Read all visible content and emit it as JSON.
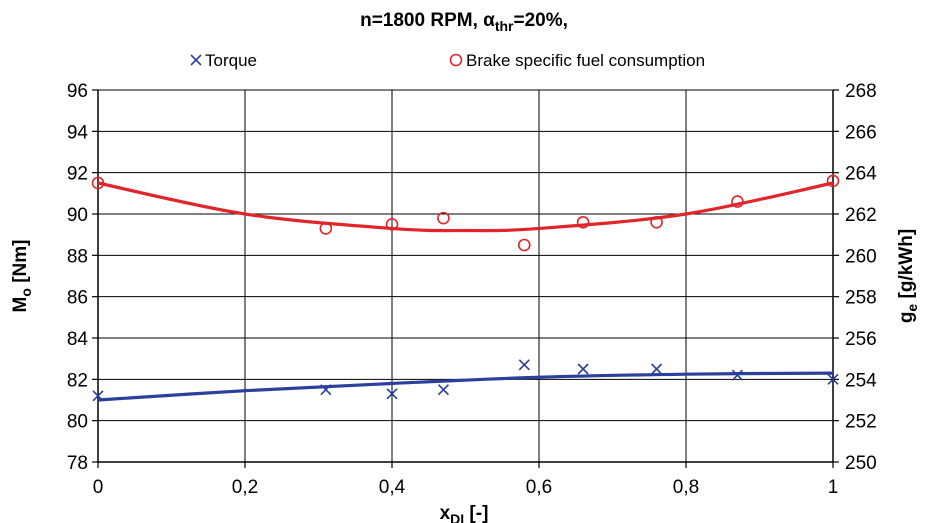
{
  "chart_data": {
    "type": "scatter",
    "title": {
      "main": "n=1800 RPM, ",
      "alpha": "α",
      "alpha_sub": "thr",
      "rest": "=20%,"
    },
    "xlabel": {
      "main": "x",
      "sub": "DI",
      "rest": " [-]"
    },
    "ylabel_left": {
      "main": "M",
      "sub": "o",
      "rest": " [Nm]"
    },
    "ylabel_right": {
      "main": "g",
      "sub": "e",
      "rest": " [g/kWh]"
    },
    "xlim": [
      0,
      1
    ],
    "ylim_left": [
      78,
      96
    ],
    "ylim_right": [
      250,
      268
    ],
    "x_ticks": [
      "0",
      "0,2",
      "0,4",
      "0,6",
      "0,8",
      "1"
    ],
    "y_left_ticks": [
      "78",
      "80",
      "82",
      "84",
      "86",
      "88",
      "90",
      "92",
      "94",
      "96"
    ],
    "y_right_ticks": [
      "250",
      "252",
      "254",
      "256",
      "258",
      "260",
      "262",
      "264",
      "266",
      "268"
    ],
    "grid": true,
    "legend_position": "top",
    "series": [
      {
        "name": "Torque",
        "axis": "left",
        "marker": "x",
        "color": "#2b3f9b",
        "x": [
          0,
          0.31,
          0.4,
          0.47,
          0.58,
          0.66,
          0.76,
          0.87,
          1.0
        ],
        "y": [
          81.2,
          81.5,
          81.3,
          81.5,
          82.7,
          82.5,
          82.5,
          82.2,
          82.0
        ],
        "trendline": {
          "x": [
            0,
            0.2,
            0.4,
            0.6,
            0.8,
            1.0
          ],
          "y": [
            81.0,
            81.45,
            81.8,
            82.1,
            82.25,
            82.3
          ]
        }
      },
      {
        "name": "Brake specific fuel consumption",
        "axis": "right",
        "marker": "circle",
        "color": "#e0262a",
        "x": [
          0,
          0.31,
          0.4,
          0.47,
          0.58,
          0.66,
          0.76,
          0.87,
          1.0
        ],
        "y": [
          263.5,
          261.3,
          261.5,
          261.8,
          260.5,
          261.6,
          261.6,
          262.6,
          263.6
        ],
        "trendline": {
          "x": [
            0,
            0.2,
            0.4,
            0.5,
            0.6,
            0.8,
            1.0
          ],
          "y": [
            263.5,
            262.0,
            261.3,
            261.2,
            261.3,
            262.0,
            263.5
          ]
        }
      }
    ]
  }
}
